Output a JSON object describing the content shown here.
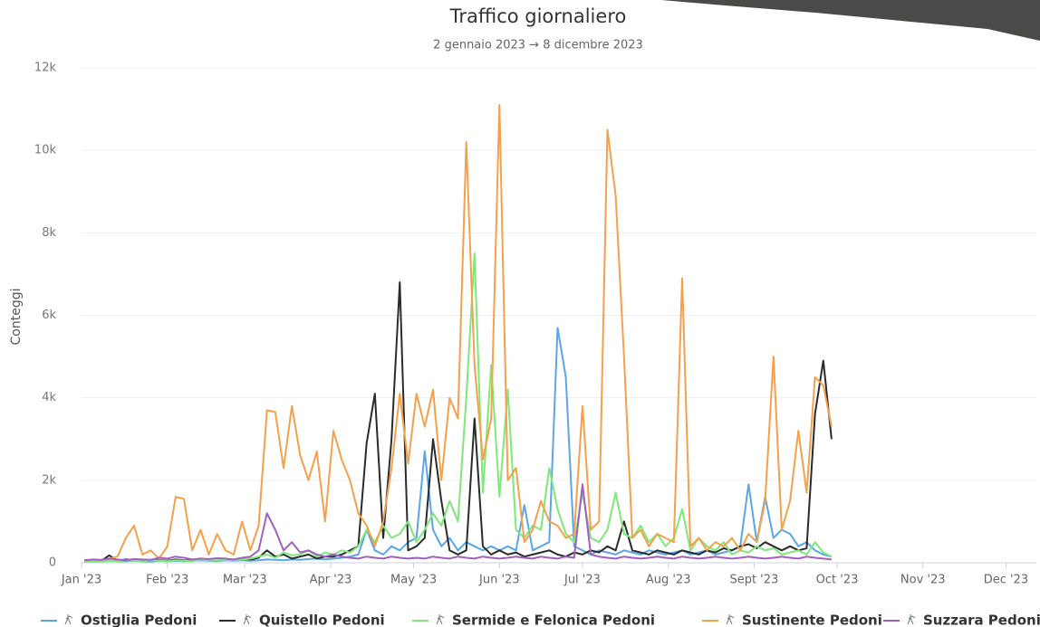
{
  "chart_data": {
    "type": "line",
    "title": "Traffico giornaliero",
    "subtitle": "2 gennaio 2023 → 8 dicembre 2023",
    "y_label": "Conteggi",
    "x": [
      1,
      4,
      7,
      10,
      13,
      16,
      19,
      22,
      25,
      28,
      31,
      34,
      37,
      40,
      43,
      46,
      49,
      52,
      55,
      58,
      61,
      64,
      67,
      70,
      73,
      76,
      79,
      82,
      85,
      88,
      91,
      94,
      97,
      100,
      103,
      106,
      109,
      112,
      115,
      118,
      121,
      124,
      127,
      130,
      133,
      136,
      139,
      142,
      145,
      148,
      151,
      154,
      157,
      160,
      163,
      166,
      169,
      172,
      175,
      178,
      181,
      184,
      187,
      190,
      193,
      196,
      199,
      202,
      205,
      208,
      211,
      214,
      217,
      220,
      223,
      226,
      229,
      232,
      235,
      238,
      241,
      244,
      247,
      250,
      253,
      256,
      259,
      262,
      265,
      268,
      271
    ],
    "xlim": [
      0,
      345
    ],
    "xticks": [
      {
        "value": 0,
        "label": "Jan '23"
      },
      {
        "value": 31,
        "label": "Feb '23"
      },
      {
        "value": 59,
        "label": "Mar '23"
      },
      {
        "value": 90,
        "label": "Apr '23"
      },
      {
        "value": 120,
        "label": "May '23"
      },
      {
        "value": 151,
        "label": "Jun '23"
      },
      {
        "value": 181,
        "label": "Jul '23"
      },
      {
        "value": 212,
        "label": "Aug '23"
      },
      {
        "value": 243,
        "label": "Sept '23"
      },
      {
        "value": 273,
        "label": "Oct '23"
      },
      {
        "value": 304,
        "label": "Nov '23"
      },
      {
        "value": 334,
        "label": "Dec '23"
      }
    ],
    "ylim": [
      0,
      12000
    ],
    "yticks": [
      0,
      {
        "value": 2000,
        "label": "2k"
      },
      {
        "value": 4000,
        "label": "4k"
      },
      {
        "value": 6000,
        "label": "6k"
      },
      {
        "value": 8000,
        "label": "8k"
      },
      {
        "value": 10000,
        "label": "10k"
      },
      {
        "value": 12000,
        "label": "12k"
      }
    ],
    "grid": true,
    "series": [
      {
        "name": "Ostiglia Pedoni",
        "color": "#5aa6e6",
        "values": [
          30,
          40,
          30,
          50,
          40,
          40,
          50,
          40,
          30,
          50,
          40,
          50,
          40,
          50,
          60,
          50,
          40,
          60,
          50,
          60,
          50,
          60,
          80,
          70,
          60,
          80,
          70,
          90,
          100,
          80,
          100,
          120,
          150,
          200,
          800,
          300,
          200,
          400,
          300,
          500,
          600,
          2700,
          800,
          400,
          600,
          300,
          500,
          400,
          300,
          400,
          300,
          400,
          300,
          1400,
          300,
          400,
          500,
          5700,
          4500,
          400,
          300,
          200,
          300,
          250,
          200,
          300,
          250,
          200,
          300,
          250,
          200,
          250,
          300,
          200,
          250,
          300,
          200,
          250,
          300,
          400,
          1900,
          500,
          1600,
          600,
          800,
          700,
          400,
          500,
          300,
          200,
          150
        ]
      },
      {
        "name": "Quistello Pedoni",
        "color": "#2b2b2b",
        "values": [
          50,
          60,
          40,
          180,
          50,
          80,
          60,
          50,
          70,
          60,
          50,
          80,
          60,
          50,
          100,
          60,
          50,
          80,
          60,
          100,
          80,
          120,
          300,
          150,
          200,
          100,
          150,
          200,
          100,
          150,
          150,
          200,
          300,
          400,
          2900,
          4100,
          600,
          3000,
          6800,
          300,
          400,
          600,
          3000,
          1500,
          300,
          200,
          300,
          3500,
          400,
          200,
          300,
          200,
          250,
          150,
          200,
          250,
          300,
          200,
          150,
          250,
          200,
          300,
          250,
          400,
          300,
          1000,
          300,
          250,
          200,
          300,
          250,
          200,
          300,
          250,
          200,
          300,
          250,
          350,
          300,
          400,
          450,
          350,
          500,
          400,
          300,
          400,
          300,
          350,
          3600,
          4900,
          3000
        ]
      },
      {
        "name": "Sermide e Felonica Pedoni",
        "color": "#7ee87a",
        "values": [
          30,
          40,
          30,
          50,
          40,
          60,
          50,
          40,
          60,
          50,
          40,
          60,
          50,
          40,
          80,
          60,
          50,
          70,
          60,
          80,
          100,
          150,
          200,
          120,
          250,
          180,
          200,
          300,
          150,
          250,
          200,
          300,
          250,
          400,
          800,
          500,
          900,
          600,
          700,
          1000,
          500,
          800,
          1200,
          900,
          1500,
          1000,
          4000,
          7500,
          1700,
          4800,
          1600,
          4200,
          800,
          600,
          900,
          800,
          2300,
          1300,
          700,
          500,
          1700,
          600,
          500,
          800,
          1700,
          700,
          600,
          900,
          500,
          700,
          400,
          600,
          1300,
          300,
          600,
          400,
          300,
          500,
          200,
          300,
          250,
          400,
          300,
          350,
          200,
          250,
          300,
          200,
          500,
          250,
          150
        ]
      },
      {
        "name": "Sustinente Pedoni",
        "color": "#f5a04a",
        "values": [
          50,
          80,
          60,
          100,
          150,
          600,
          900,
          200,
          300,
          100,
          400,
          1600,
          1550,
          300,
          800,
          200,
          700,
          300,
          200,
          1000,
          300,
          900,
          3700,
          3650,
          2300,
          3800,
          2600,
          2000,
          2700,
          1000,
          3200,
          2500,
          2000,
          1200,
          900,
          400,
          1000,
          2300,
          4100,
          2400,
          4100,
          3300,
          4200,
          2000,
          4000,
          3500,
          10200,
          4800,
          2500,
          3500,
          11100,
          2000,
          2300,
          500,
          800,
          1500,
          1000,
          900,
          600,
          700,
          3800,
          800,
          1000,
          10500,
          8900,
          5000,
          600,
          800,
          400,
          700,
          600,
          500,
          6900,
          400,
          600,
          300,
          500,
          400,
          600,
          300,
          700,
          500,
          1500,
          5000,
          800,
          1500,
          3200,
          1700,
          4500,
          4300,
          3300
        ]
      },
      {
        "name": "Suzzara Pedoni",
        "color": "#a25fbf",
        "values": [
          60,
          80,
          70,
          100,
          80,
          60,
          90,
          80,
          70,
          120,
          100,
          150,
          120,
          80,
          100,
          90,
          110,
          100,
          80,
          120,
          150,
          300,
          1200,
          800,
          300,
          500,
          250,
          300,
          200,
          150,
          200,
          150,
          120,
          100,
          150,
          120,
          100,
          150,
          120,
          100,
          120,
          100,
          150,
          120,
          100,
          150,
          120,
          100,
          150,
          120,
          100,
          120,
          150,
          120,
          100,
          150,
          120,
          100,
          150,
          120,
          1900,
          200,
          150,
          120,
          100,
          150,
          120,
          100,
          120,
          150,
          120,
          100,
          150,
          120,
          100,
          120,
          150,
          120,
          100,
          120,
          150,
          120,
          100,
          120,
          150,
          120,
          100,
          150,
          120,
          100,
          80
        ]
      }
    ]
  }
}
